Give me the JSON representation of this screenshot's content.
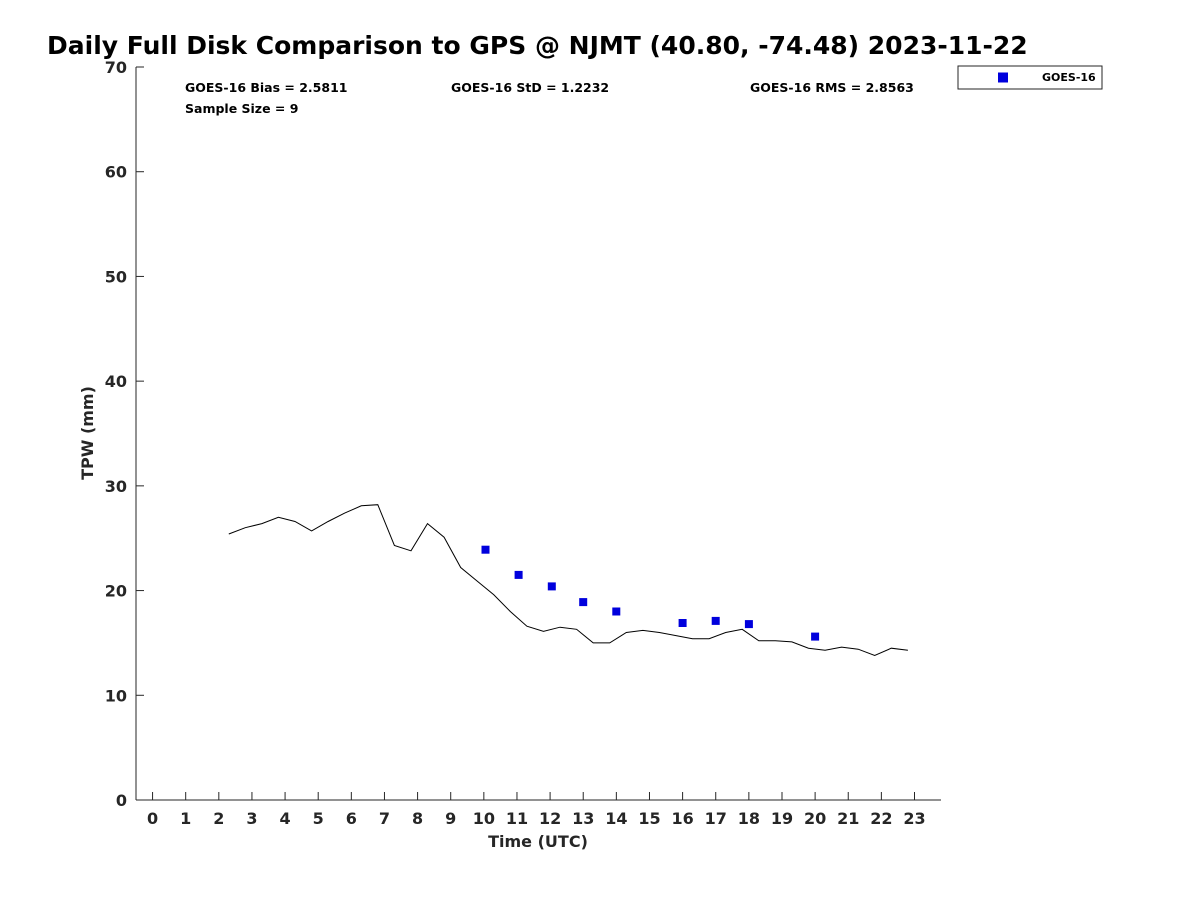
{
  "chart_data": {
    "type": "scatter",
    "title": "Daily Full Disk Comparison to GPS @ NJMT (40.80, -74.48) 2023-11-22",
    "xlabel": "Time (UTC)",
    "ylabel": "TPW (mm)",
    "xlim": [
      -0.5,
      23.8
    ],
    "ylim": [
      0,
      70
    ],
    "x_ticks": [
      0,
      1,
      2,
      3,
      4,
      5,
      6,
      7,
      8,
      9,
      10,
      11,
      12,
      13,
      14,
      15,
      16,
      17,
      18,
      19,
      20,
      21,
      22,
      23
    ],
    "y_ticks": [
      0,
      10,
      20,
      30,
      40,
      50,
      60,
      70
    ],
    "grid": false,
    "legend_position": "top-right",
    "stats": {
      "bias": "GOES-16 Bias = 2.5811",
      "std": "GOES-16 StD = 1.2232",
      "rms": "GOES-16 RMS = 2.8563",
      "sample_size": "Sample Size = 9"
    },
    "series": [
      {
        "name": "GOES-16",
        "kind": "scatter",
        "color": "#0000dd",
        "marker": "square",
        "x": [
          10.05,
          11.05,
          12.05,
          13.0,
          14.0,
          16.0,
          17.0,
          18.0,
          20.0
        ],
        "y": [
          23.9,
          21.5,
          20.4,
          18.9,
          18.0,
          16.9,
          17.1,
          16.8,
          15.6
        ]
      },
      {
        "kind": "line",
        "color": "#000000",
        "x": [
          2.3,
          2.8,
          3.3,
          3.8,
          4.3,
          4.8,
          5.3,
          5.8,
          6.3,
          6.8,
          7.3,
          7.8,
          8.3,
          8.8,
          9.3,
          9.8,
          10.3,
          10.8,
          11.3,
          11.8,
          12.3,
          12.8,
          13.3,
          13.8,
          14.3,
          14.8,
          15.3,
          15.8,
          16.3,
          16.8,
          17.3,
          17.8,
          18.3,
          18.8,
          19.3,
          19.8,
          20.3,
          20.8,
          21.3,
          21.8,
          22.3,
          22.8
        ],
        "y": [
          25.4,
          26.0,
          26.4,
          27.0,
          26.6,
          25.7,
          26.6,
          27.4,
          28.1,
          28.2,
          24.3,
          23.8,
          26.4,
          25.1,
          22.2,
          20.9,
          19.6,
          18.0,
          16.6,
          16.1,
          16.5,
          16.3,
          15.0,
          15.0,
          16.0,
          16.2,
          16.0,
          15.7,
          15.4,
          15.4,
          16.0,
          16.3,
          15.2,
          15.2,
          15.1,
          14.5,
          14.3,
          14.6,
          14.4,
          13.8,
          14.5,
          14.3
        ]
      }
    ]
  }
}
